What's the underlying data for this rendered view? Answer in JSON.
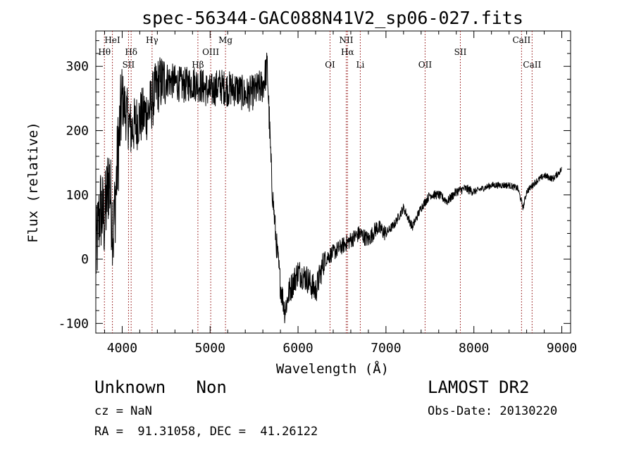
{
  "chart_data": {
    "type": "line",
    "title": "spec-56344-GAC088N41V2_sp06-027.fits",
    "xlabel": "Wavelength (Å)",
    "ylabel": "Flux (relative)",
    "xlim": [
      3700,
      9100
    ],
    "ylim": [
      -115,
      355
    ],
    "xticks": [
      4000,
      5000,
      6000,
      7000,
      8000,
      9000
    ],
    "yticks": [
      -100,
      0,
      100,
      200,
      300
    ],
    "grid": false,
    "legend": "none",
    "line_color": "#000000",
    "marker_color": "#8b0000",
    "spectrum_anchor_points": {
      "x": [
        3700,
        3750,
        3800,
        3850,
        3900,
        3950,
        4000,
        4100,
        4200,
        4300,
        4400,
        4500,
        4600,
        4700,
        4800,
        4900,
        5000,
        5100,
        5200,
        5300,
        5400,
        5500,
        5600,
        5650,
        5700,
        5750,
        5800,
        5850,
        5900,
        6000,
        6100,
        6200,
        6300,
        6400,
        6500,
        6600,
        6700,
        6800,
        6900,
        7000,
        7100,
        7200,
        7300,
        7400,
        7500,
        7600,
        7700,
        7800,
        7900,
        8000,
        8100,
        8200,
        8300,
        8400,
        8500,
        8560,
        8600,
        8700,
        8800,
        8900,
        9000
      ],
      "y": [
        0,
        80,
        60,
        130,
        40,
        160,
        250,
        200,
        220,
        230,
        270,
        280,
        275,
        270,
        275,
        270,
        260,
        270,
        265,
        265,
        255,
        260,
        270,
        300,
        120,
        30,
        -40,
        -80,
        -50,
        -20,
        -30,
        -50,
        0,
        10,
        20,
        30,
        40,
        30,
        50,
        40,
        55,
        80,
        50,
        80,
        100,
        100,
        90,
        105,
        110,
        105,
        110,
        115,
        115,
        115,
        110,
        80,
        105,
        120,
        130,
        125,
        140
      ]
    },
    "lines": [
      {
        "label": "Hθ",
        "x": 3798,
        "row": 2
      },
      {
        "label": "HeI",
        "x": 3889,
        "row": 1
      },
      {
        "label": "SII",
        "x": 4072,
        "row": 3
      },
      {
        "label": "Hδ",
        "x": 4102,
        "row": 2
      },
      {
        "label": "Hγ",
        "x": 4340,
        "row": 1
      },
      {
        "label": "Hβ",
        "x": 4861,
        "row": 3
      },
      {
        "label": "OIII",
        "x": 5007,
        "row": 2
      },
      {
        "label": "Mg",
        "x": 5175,
        "row": 1
      },
      {
        "label": "OI",
        "x": 6364,
        "row": 3
      },
      {
        "label": "NII",
        "x": 6548,
        "row": 1
      },
      {
        "label": "Hα",
        "x": 6563,
        "row": 2
      },
      {
        "label": "Li",
        "x": 6708,
        "row": 3
      },
      {
        "label": "OII",
        "x": 7445,
        "row": 3
      },
      {
        "label": "SII",
        "x": 7846,
        "row": 2
      },
      {
        "label": "CaII",
        "x": 8542,
        "row": 1
      },
      {
        "label": "CaII",
        "x": 8662,
        "row": 3
      }
    ]
  },
  "footer": {
    "classification": "Unknown   Non",
    "cz": "cz = NaN",
    "coords": "RA =  91.31058, DEC =  41.26122",
    "survey": "LAMOST DR2",
    "obs_date": "Obs-Date: 20130220"
  }
}
